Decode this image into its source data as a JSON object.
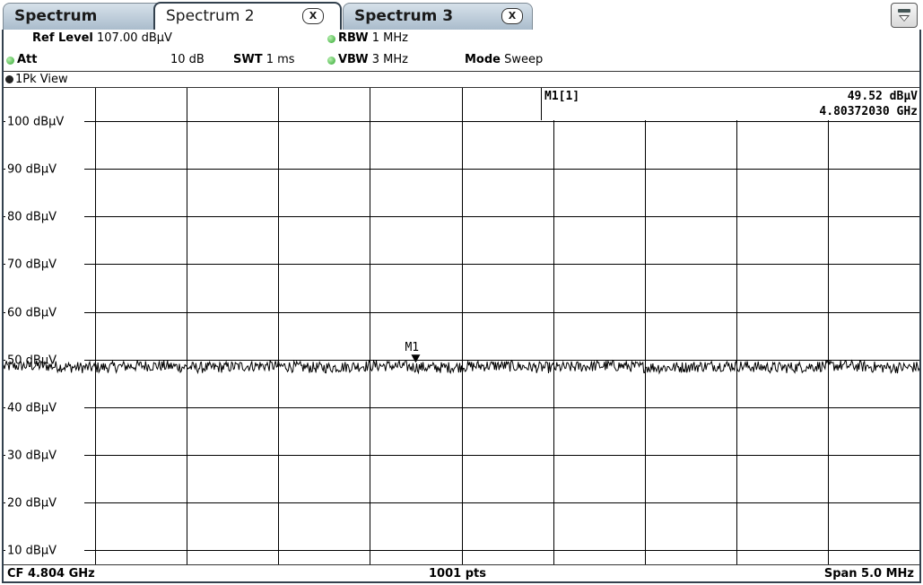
{
  "tabs": [
    {
      "label": "Spectrum",
      "closable": false,
      "active": false
    },
    {
      "label": "Spectrum 2",
      "closable": true,
      "active": true
    },
    {
      "label": "Spectrum 3",
      "closable": true,
      "active": false
    }
  ],
  "close_glyph": "X",
  "menu_icon": "dropdown-menu-icon",
  "settings": {
    "ref_level_label": "Ref Level",
    "ref_level_value": "107.00 dBµV",
    "att_label": "Att",
    "att_value": "10 dB",
    "swt_label": "SWT",
    "swt_value": "1 ms",
    "rbw_label": "RBW",
    "rbw_value": "1 MHz",
    "vbw_label": "VBW",
    "vbw_value": "3 MHz",
    "mode_label": "Mode",
    "mode_value": "Sweep"
  },
  "view": {
    "label": "1Pk View"
  },
  "marker": {
    "table_label": "M1[1]",
    "level": "49.52 dBµV",
    "frequency": "4.80372030 GHz",
    "label": "M1",
    "position_fraction": 0.45,
    "level_dbuv": 49.52
  },
  "footer": {
    "center": "CF 4.804 GHz",
    "points": "1001 pts",
    "span": "Span 5.0 MHz"
  },
  "colors": {
    "frame": "#33414e",
    "grid": "#000000",
    "trace": "#000000",
    "status_dot": "#2ea62e"
  },
  "chart_data": {
    "type": "line",
    "y_tick_labels": [
      "100 dBµV",
      "90 dBµV",
      "80 dBµV",
      "70 dBµV",
      "60 dBµV",
      "50 dBµV",
      "40 dBµV",
      "30 dBµV",
      "20 dBµV",
      "10 dBµV"
    ],
    "y_ticks": [
      100,
      90,
      80,
      70,
      60,
      50,
      40,
      30,
      20,
      10
    ],
    "ylim": [
      7,
      107
    ],
    "x_divisions": 10,
    "grid": true,
    "series": [
      {
        "points": 1001,
        "mean_level": 48.5,
        "ripple": 1.2
      }
    ]
  }
}
